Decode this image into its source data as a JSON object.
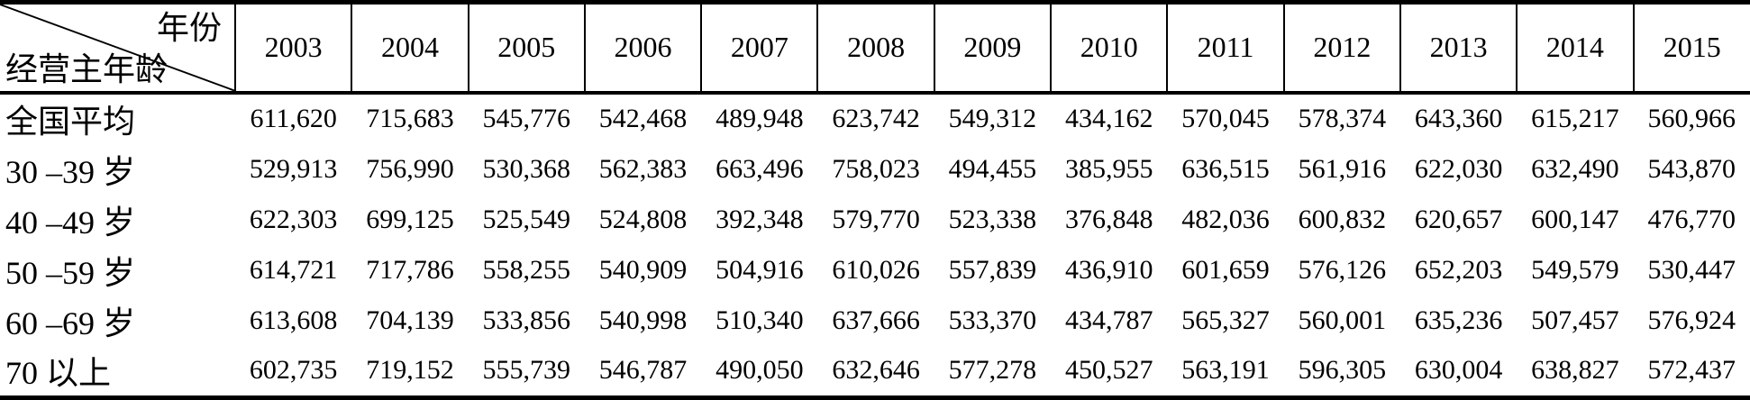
{
  "table": {
    "corner": {
      "top_label": "年份",
      "bottom_label": "经营主年龄"
    },
    "years": [
      "2003",
      "2004",
      "2005",
      "2006",
      "2007",
      "2008",
      "2009",
      "2010",
      "2011",
      "2012",
      "2013",
      "2014",
      "2015"
    ],
    "rows": [
      {
        "label": "全国平均",
        "values": [
          "611,620",
          "715,683",
          "545,776",
          "542,468",
          "489,948",
          "623,742",
          "549,312",
          "434,162",
          "570,045",
          "578,374",
          "643,360",
          "615,217",
          "560,966"
        ]
      },
      {
        "label": "30 –39 岁",
        "values": [
          "529,913",
          "756,990",
          "530,368",
          "562,383",
          "663,496",
          "758,023",
          "494,455",
          "385,955",
          "636,515",
          "561,916",
          "622,030",
          "632,490",
          "543,870"
        ]
      },
      {
        "label": "40 –49 岁",
        "values": [
          "622,303",
          "699,125",
          "525,549",
          "524,808",
          "392,348",
          "579,770",
          "523,338",
          "376,848",
          "482,036",
          "600,832",
          "620,657",
          "600,147",
          "476,770"
        ]
      },
      {
        "label": "50 –59 岁",
        "values": [
          "614,721",
          "717,786",
          "558,255",
          "540,909",
          "504,916",
          "610,026",
          "557,839",
          "436,910",
          "601,659",
          "576,126",
          "652,203",
          "549,579",
          "530,447"
        ]
      },
      {
        "label": "60 –69 岁",
        "values": [
          "613,608",
          "704,139",
          "533,856",
          "540,998",
          "510,340",
          "637,666",
          "533,370",
          "434,787",
          "565,327",
          "560,001",
          "635,236",
          "507,457",
          "576,924"
        ]
      },
      {
        "label": "70 以上",
        "values": [
          "602,735",
          "719,152",
          "555,739",
          "546,787",
          "490,050",
          "632,646",
          "577,278",
          "450,527",
          "563,191",
          "596,305",
          "630,004",
          "638,827",
          "572,437"
        ]
      }
    ]
  }
}
